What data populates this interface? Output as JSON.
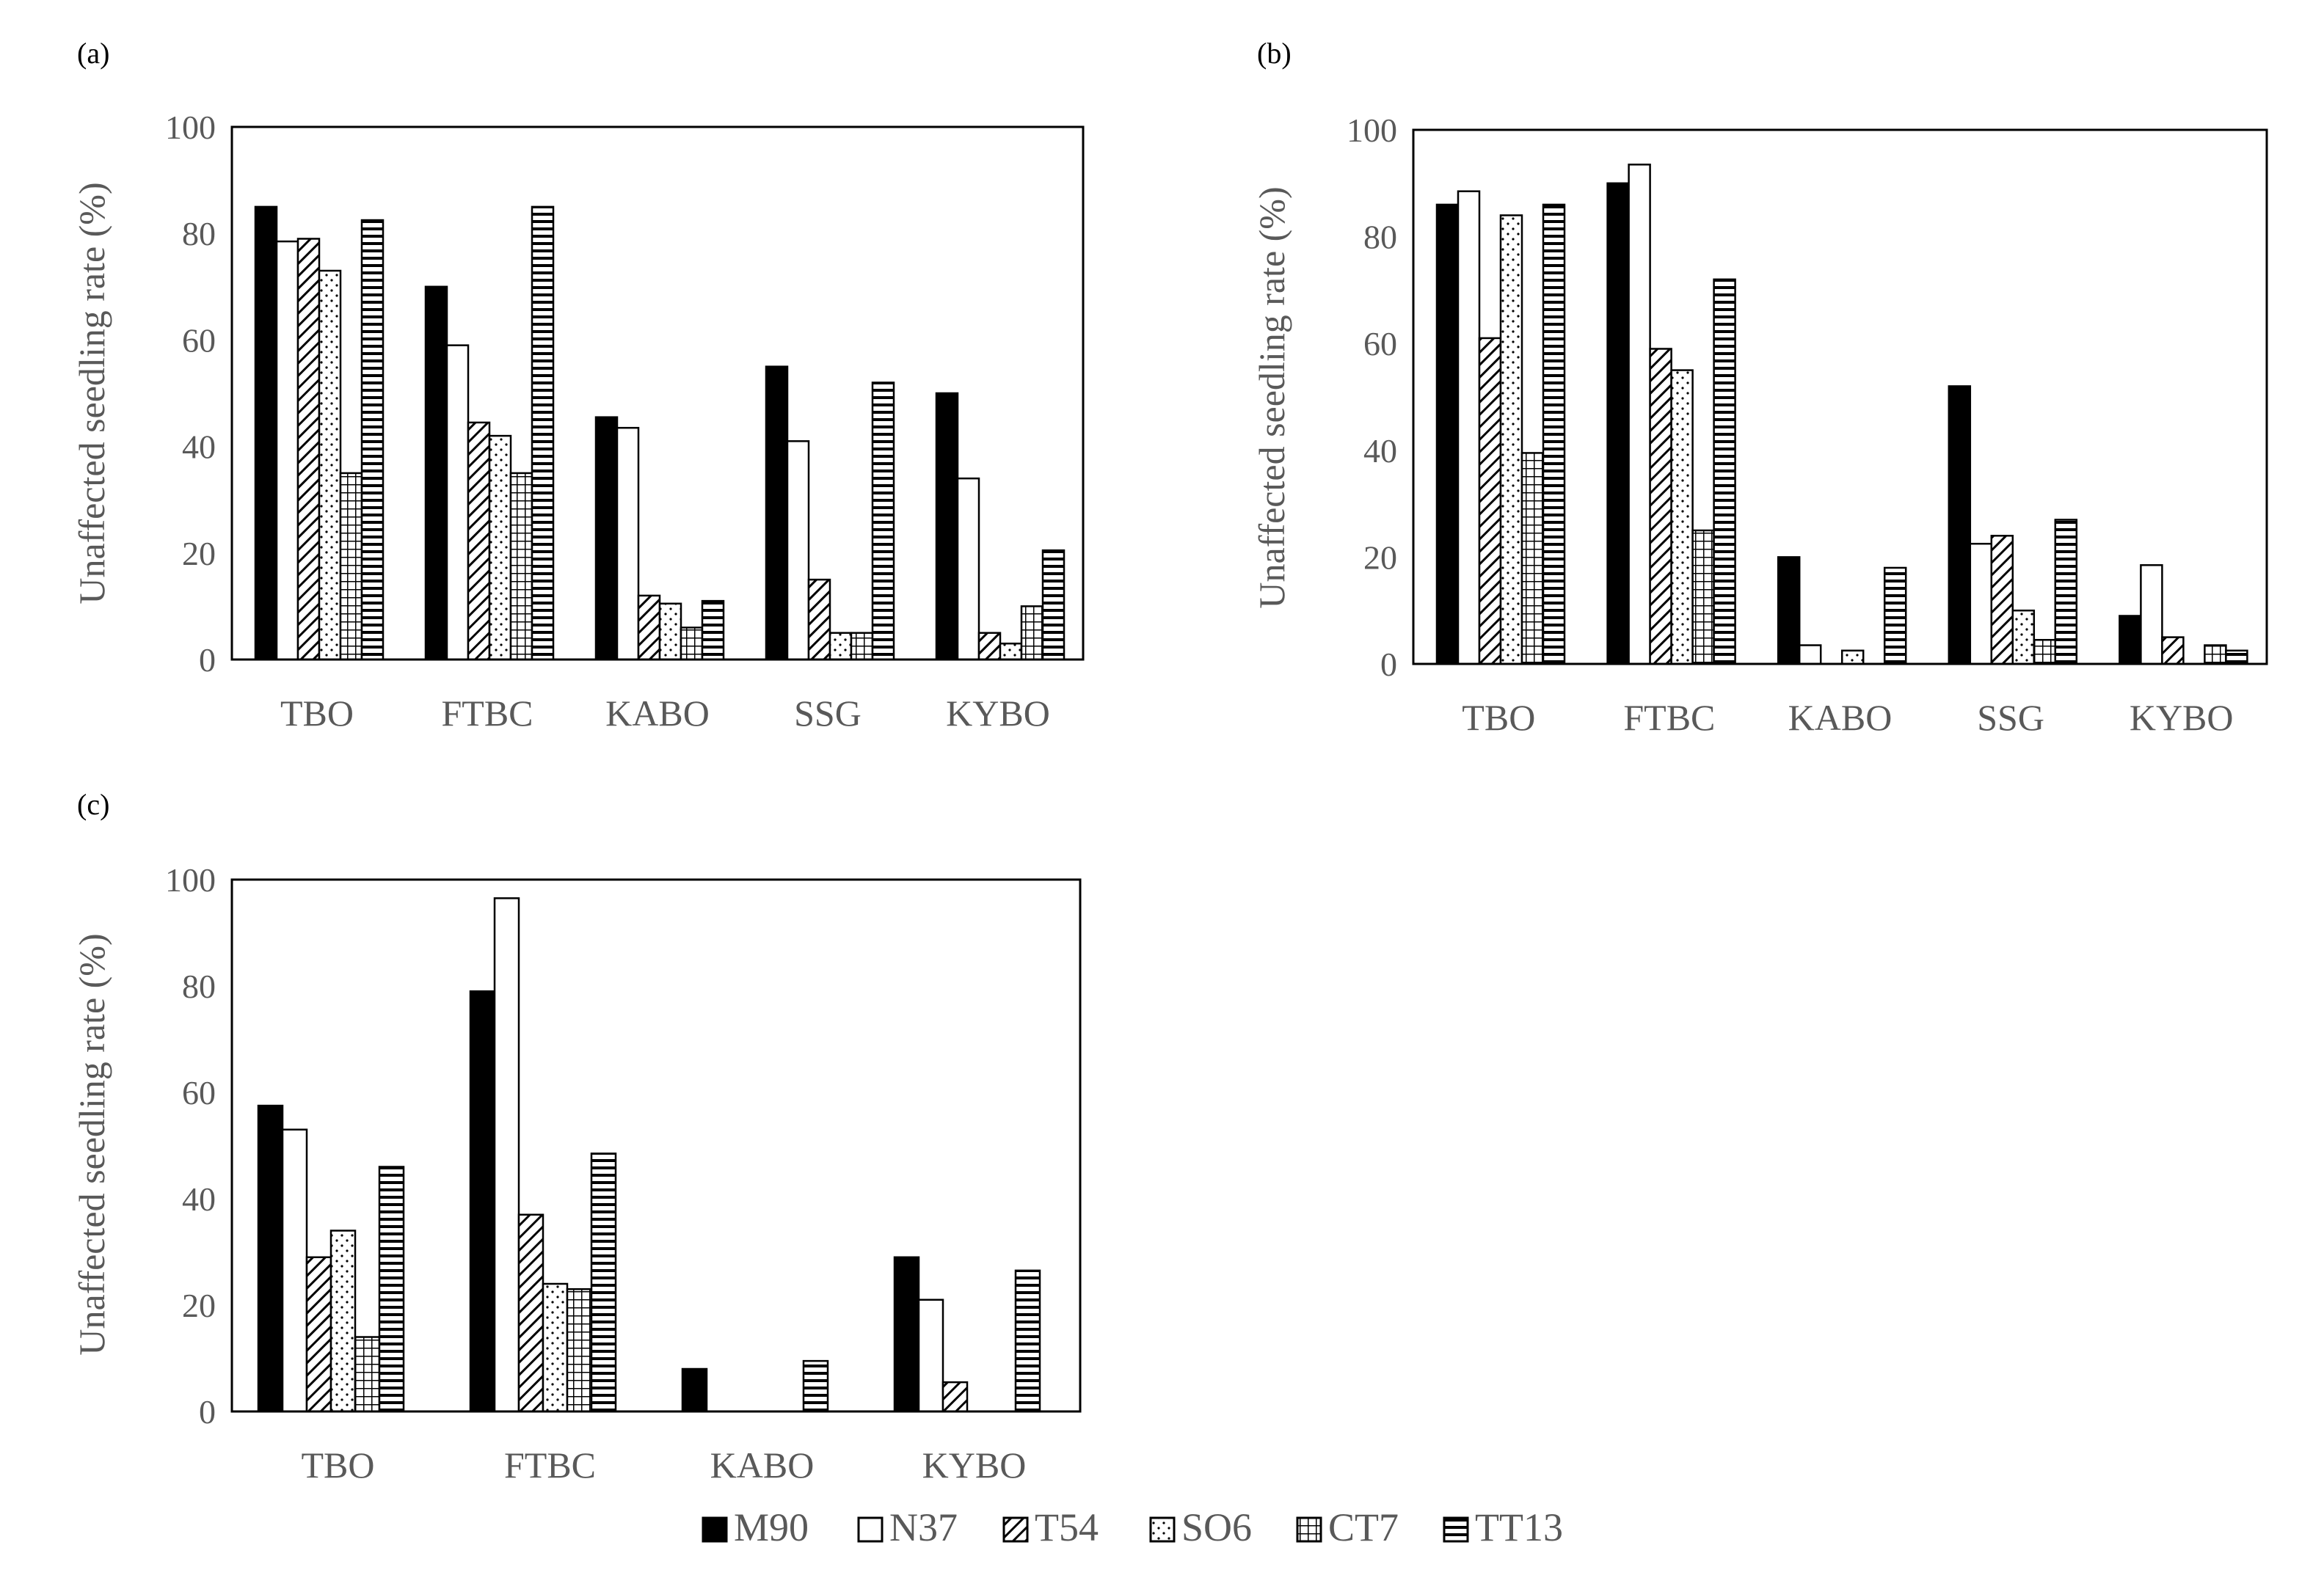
{
  "colors": {
    "axis": "#000000",
    "text": "#595959",
    "bar_stroke": "#000000",
    "background": "#ffffff"
  },
  "legend": {
    "items": [
      {
        "name": "M90",
        "pattern": "solid"
      },
      {
        "name": "N37",
        "pattern": "empty"
      },
      {
        "name": "T54",
        "pattern": "diag"
      },
      {
        "name": "SO6",
        "pattern": "dots"
      },
      {
        "name": "CT7",
        "pattern": "grid"
      },
      {
        "name": "TT13",
        "pattern": "hstripe"
      }
    ]
  },
  "chart_data": [
    {
      "panel_label": "(a)",
      "type": "bar",
      "ylabel": "Unaffected seedling rate (%)",
      "ylim": [
        0,
        100
      ],
      "yticks": [
        "0",
        "20",
        "40",
        "60",
        "80",
        "100"
      ],
      "categories": [
        "TBO",
        "FTBC",
        "KABO",
        "SSG",
        "KYBO"
      ],
      "series": [
        {
          "name": "M90",
          "values": [
            85,
            70,
            45.5,
            55,
            50
          ]
        },
        {
          "name": "N37",
          "values": [
            78.5,
            59,
            43.5,
            41,
            34
          ]
        },
        {
          "name": "T54",
          "values": [
            79,
            44.5,
            12,
            15,
            5
          ]
        },
        {
          "name": "SO6",
          "values": [
            73,
            42,
            10.5,
            5,
            3
          ]
        },
        {
          "name": "CT7",
          "values": [
            35,
            35,
            6,
            5,
            10
          ]
        },
        {
          "name": "TT13",
          "values": [
            82.5,
            85,
            11,
            52,
            20.5
          ]
        }
      ]
    },
    {
      "panel_label": "(b)",
      "type": "bar",
      "ylabel": "Unaffected seedling rate (%)",
      "ylim": [
        0,
        100
      ],
      "yticks": [
        "0",
        "20",
        "40",
        "60",
        "80",
        "100"
      ],
      "categories": [
        "TBO",
        "FTBC",
        "KABO",
        "SSG",
        "KYBO"
      ],
      "series": [
        {
          "name": "M90",
          "values": [
            86,
            90,
            20,
            52,
            9
          ]
        },
        {
          "name": "N37",
          "values": [
            88.5,
            93.5,
            3.5,
            22.5,
            18.5
          ]
        },
        {
          "name": "T54",
          "values": [
            61,
            59,
            0,
            24,
            5
          ]
        },
        {
          "name": "SO6",
          "values": [
            84,
            55,
            2.5,
            10,
            0
          ]
        },
        {
          "name": "CT7",
          "values": [
            39.5,
            25,
            0,
            4.5,
            3.5
          ]
        },
        {
          "name": "TT13",
          "values": [
            86,
            72,
            18,
            27,
            2.5
          ]
        }
      ]
    },
    {
      "panel_label": "(c)",
      "type": "bar",
      "ylabel": "Unaffected seedling rate (%)",
      "ylim": [
        0,
        100
      ],
      "yticks": [
        "0",
        "20",
        "40",
        "60",
        "80",
        "100"
      ],
      "categories": [
        "TBO",
        "FTBC",
        "KABO",
        "KYBO"
      ],
      "series": [
        {
          "name": "M90",
          "values": [
            57.5,
            79,
            8,
            29
          ]
        },
        {
          "name": "N37",
          "values": [
            53,
            96.5,
            0,
            21
          ]
        },
        {
          "name": "T54",
          "values": [
            29,
            37,
            0,
            5.5
          ]
        },
        {
          "name": "SO6",
          "values": [
            34,
            24,
            0,
            0
          ]
        },
        {
          "name": "CT7",
          "values": [
            14,
            23,
            0,
            0
          ]
        },
        {
          "name": "TT13",
          "values": [
            46,
            48.5,
            9.5,
            26.5
          ]
        }
      ]
    }
  ]
}
